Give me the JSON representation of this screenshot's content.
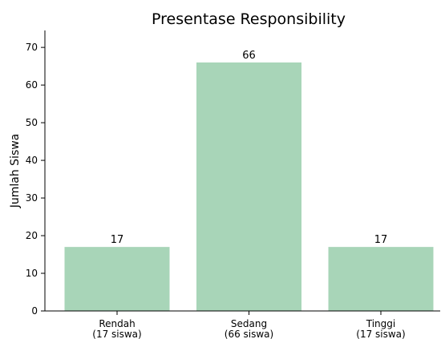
{
  "colors": {
    "bar": "#a8d5b8"
  },
  "chart_data": {
    "type": "bar",
    "title": "Presentase Responsibility",
    "xlabel": "",
    "ylabel": "Jumlah Siswa",
    "categories": [
      [
        "Rendah",
        "(17 siswa)"
      ],
      [
        "Sedang",
        "(66 siswa)"
      ],
      [
        "Tinggi",
        "(17 siswa)"
      ]
    ],
    "values": [
      17,
      66,
      17
    ],
    "data_labels": [
      "17",
      "66",
      "17"
    ],
    "ylim": [
      0,
      74.5
    ],
    "yticks": [
      0,
      10,
      20,
      30,
      40,
      50,
      60,
      70
    ],
    "grid": false,
    "legend": "none"
  }
}
